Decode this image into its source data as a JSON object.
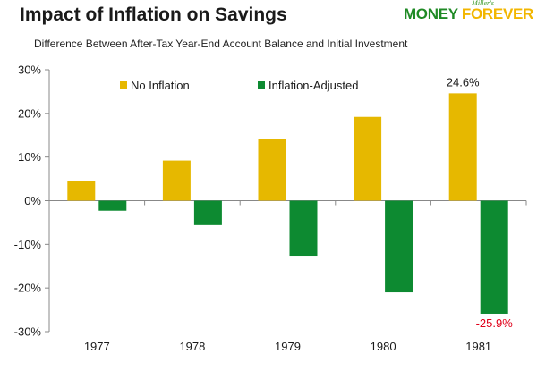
{
  "header": {
    "title": "Impact of Inflation on Savings",
    "subtitle": "Difference Between After-Tax Year-End Account Balance and Initial Investment"
  },
  "logo": {
    "tagline": "Miller's",
    "word1": "MONEY",
    "word2": "FOREVER"
  },
  "chart_data": {
    "type": "bar",
    "categories": [
      "1977",
      "1978",
      "1979",
      "1980",
      "1981"
    ],
    "series": [
      {
        "name": "No Inflation",
        "color": "#e6b800",
        "values": [
          4.5,
          9.2,
          14.1,
          19.2,
          24.6
        ]
      },
      {
        "name": "Inflation-Adjusted",
        "color": "#0d8a31",
        "values": [
          -2.3,
          -5.6,
          -12.6,
          -21.0,
          -25.9
        ]
      }
    ],
    "ylim": [
      -30,
      30
    ],
    "yticks": [
      -30,
      -20,
      -10,
      0,
      10,
      20,
      30
    ],
    "ytick_labels": [
      "-30%",
      "-20%",
      "-10%",
      "0%",
      "10%",
      "20%",
      "30%"
    ],
    "grid": false,
    "legend": "top",
    "annotations": [
      {
        "text": "24.6%",
        "series": 0,
        "index": 4,
        "color": "#1a1a1a"
      },
      {
        "text": "-25.9%",
        "series": 1,
        "index": 4,
        "color": "#e0001a"
      }
    ]
  }
}
